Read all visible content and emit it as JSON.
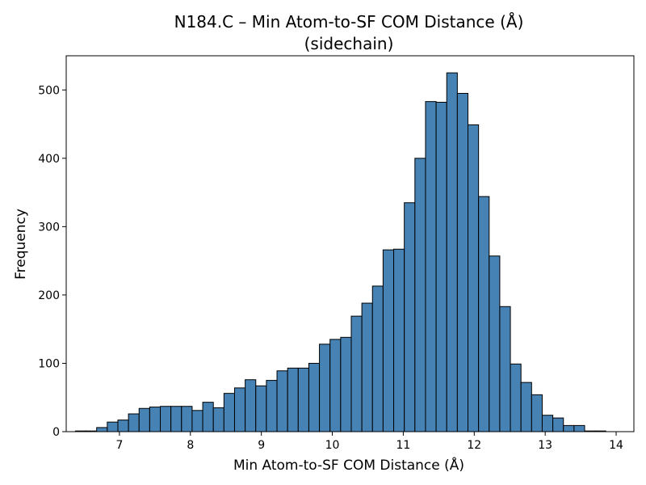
{
  "chart_data": {
    "type": "bar",
    "title": "N184.C – Min Atom-to-SF COM Distance (Å)",
    "subtitle": "(sidechain)",
    "xlabel": "Min Atom-to-SF COM Distance (Å)",
    "ylabel": "Frequency",
    "xlim": [
      6.25,
      14.25
    ],
    "ylim": [
      0,
      550
    ],
    "xticks": [
      7,
      8,
      9,
      10,
      11,
      12,
      13,
      14
    ],
    "yticks": [
      0,
      100,
      200,
      300,
      400,
      500
    ],
    "grid": false,
    "legend": "none",
    "bar_color": "#4682b4",
    "edge_color": "#000000",
    "bins": {
      "start": 6.38,
      "width": 0.1495
    },
    "values": [
      1,
      1,
      6,
      14,
      17,
      26,
      34,
      36,
      37,
      37,
      37,
      31,
      43,
      35,
      56,
      64,
      76,
      67,
      75,
      89,
      93,
      93,
      100,
      128,
      135,
      138,
      169,
      188,
      213,
      266,
      267,
      335,
      400,
      483,
      482,
      525,
      495,
      449,
      344,
      257,
      183,
      99,
      72,
      54,
      24,
      20,
      9,
      9,
      1,
      1
    ]
  }
}
